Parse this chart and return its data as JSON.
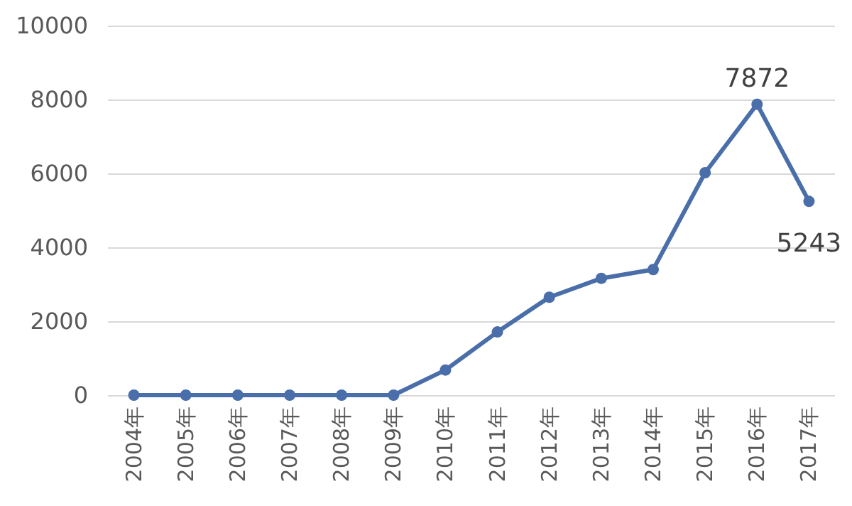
{
  "chart_data": {
    "type": "line",
    "categories": [
      "2004年",
      "2005年",
      "2006年",
      "2007年",
      "2008年",
      "2009年",
      "2010年",
      "2011年",
      "2012年",
      "2013年",
      "2014年",
      "2015年",
      "2016年",
      "2017年"
    ],
    "series": [
      {
        "color": "#4a6eaa",
        "values": [
          0,
          0,
          0,
          0,
          0,
          0,
          680,
          1710,
          2650,
          3160,
          3400,
          6020,
          7872,
          5243
        ],
        "value_labels": [
          null,
          null,
          null,
          null,
          null,
          null,
          null,
          null,
          null,
          null,
          null,
          null,
          "7872",
          "5243"
        ]
      }
    ],
    "ylim": [
      0,
      10000
    ],
    "yticks": [
      0,
      2000,
      4000,
      6000,
      8000,
      10000
    ],
    "grid": "y",
    "marker": "circle",
    "line_style": "solid"
  }
}
